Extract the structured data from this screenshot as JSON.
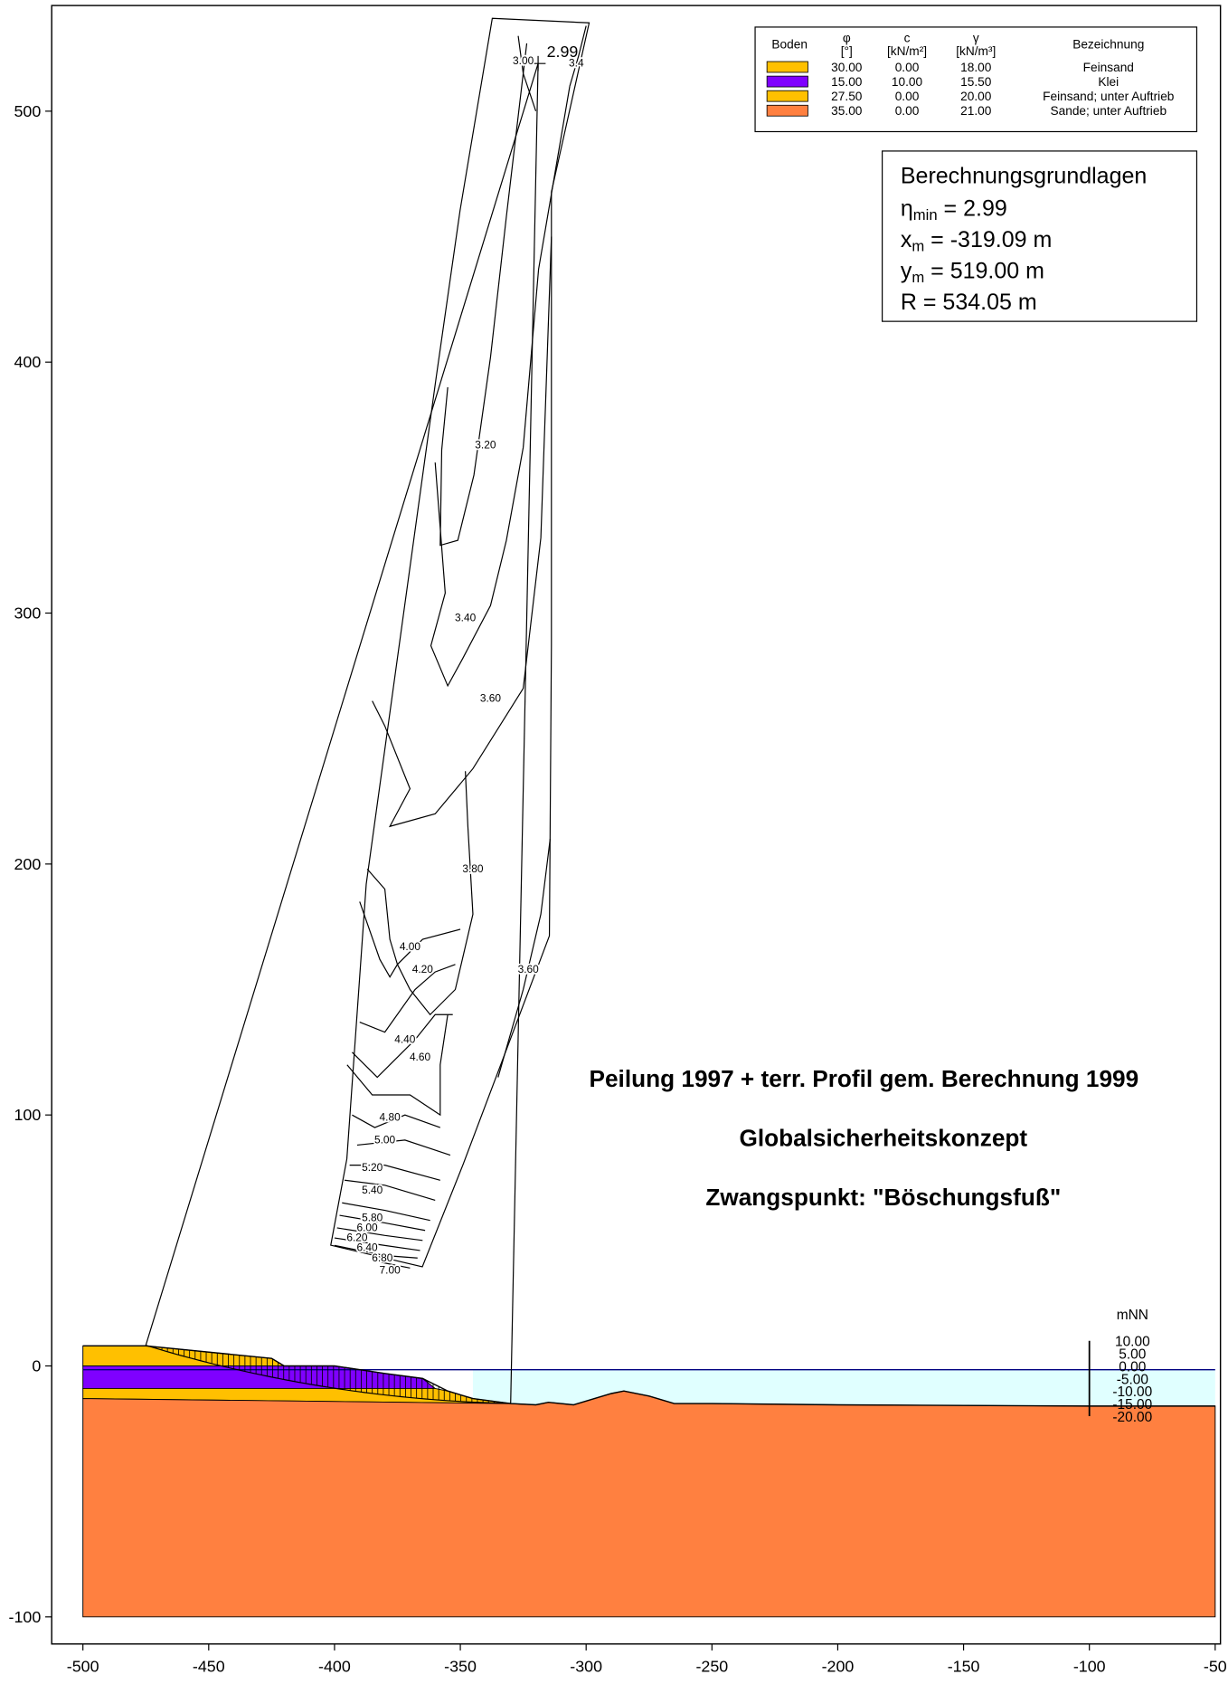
{
  "chart_data": {
    "type": "slope-stability",
    "xlim": [
      -512.4,
      -47.9
    ],
    "ylim": [
      -110.8,
      542.1
    ],
    "xticks": [
      -500,
      -450,
      -400,
      -350,
      -300,
      -250,
      -200,
      -150,
      -100,
      -50
    ],
    "yticks": [
      -100,
      0,
      100,
      200,
      300,
      400,
      500
    ],
    "annotations": [
      "Peilung 1997 + terr. Profil gem. Berechnung 1999",
      "Globalsicherheitskonzept",
      "Zwangspunkt: \"Böschungsfuß\""
    ],
    "legend": {
      "headers": [
        {
          "top": "Boden"
        },
        {
          "top": "φ",
          "bottom": "[°]"
        },
        {
          "top": "c",
          "bottom": "[kN/m²]"
        },
        {
          "top": "γ",
          "bottom": "[kN/m³]"
        },
        {
          "top": "Bezeichnung"
        }
      ],
      "rows": [
        {
          "color": "#ffc000",
          "phi": "30.00",
          "c": "0.00",
          "gamma": "18.00",
          "name": "Feinsand"
        },
        {
          "color": "#7f00ff",
          "phi": "15.00",
          "c": "10.00",
          "gamma": "15.50",
          "name": "Klei"
        },
        {
          "color": "#ffc000",
          "phi": "27.50",
          "c": "0.00",
          "gamma": "20.00",
          "name": "Feinsand; unter Auftrieb"
        },
        {
          "color": "#ff8040",
          "phi": "35.00",
          "c": "0.00",
          "gamma": "21.00",
          "name": "Sande; unter Auftrieb"
        }
      ]
    },
    "info": {
      "title": "Berechnungsgrundlagen",
      "lines": [
        {
          "symbol": "η",
          "sub": "min",
          "rest": " = 2.99"
        },
        {
          "symbol": "x",
          "sub": "m",
          "rest": " = -319.09 m"
        },
        {
          "symbol": "y",
          "sub": "m",
          "rest": " = 519.00 m"
        },
        {
          "symbol": "R",
          "sub": "",
          "rest": " = 534.05 m"
        }
      ]
    },
    "layers": [
      {
        "color": "#ffc000",
        "points": [
          [
            -500,
            8
          ],
          [
            -475,
            8
          ],
          [
            -425,
            3
          ],
          [
            -420,
            0
          ],
          [
            -500,
            0
          ]
        ]
      },
      {
        "color": "#7f00ff",
        "points": [
          [
            -500,
            0
          ],
          [
            -400,
            0
          ],
          [
            -380,
            -3
          ],
          [
            -365,
            -5
          ],
          [
            -360,
            -9
          ],
          [
            -500,
            -9
          ]
        ]
      },
      {
        "color": "#ffc000",
        "points": [
          [
            -500,
            -9
          ],
          [
            -360,
            -9
          ],
          [
            -355,
            -10
          ],
          [
            -345,
            -13
          ],
          [
            -330,
            -15
          ],
          [
            -500,
            -13
          ]
        ]
      },
      {
        "color": "#ff8040",
        "points": [
          [
            -500,
            -13
          ],
          [
            -330,
            -15
          ],
          [
            -320,
            -15.5
          ],
          [
            -315,
            -14.5
          ],
          [
            -305,
            -15.5
          ],
          [
            -300,
            -14
          ],
          [
            -290,
            -11
          ],
          [
            -285,
            -10
          ],
          [
            -275,
            -12
          ],
          [
            -265,
            -15
          ],
          [
            -250,
            -15
          ],
          [
            -200,
            -15.5
          ],
          [
            -100,
            -16
          ],
          [
            -50,
            -16
          ],
          [
            -50,
            -100
          ],
          [
            -500,
            -100
          ]
        ]
      }
    ],
    "ground_surface": [
      [
        -500,
        8
      ],
      [
        -475,
        8
      ],
      [
        -425,
        3
      ],
      [
        -420,
        0
      ],
      [
        -400,
        0
      ],
      [
        -380,
        -3
      ],
      [
        -365,
        -5
      ],
      [
        -355,
        -10
      ],
      [
        -345,
        -13
      ],
      [
        -330,
        -15
      ],
      [
        -320,
        -15.5
      ],
      [
        -315,
        -14.5
      ],
      [
        -305,
        -15.5
      ],
      [
        -300,
        -14
      ],
      [
        -290,
        -11
      ],
      [
        -285,
        -10
      ],
      [
        -275,
        -12
      ],
      [
        -265,
        -15
      ],
      [
        -250,
        -15
      ],
      [
        -200,
        -15.5
      ],
      [
        -100,
        -16
      ],
      [
        -50,
        -16
      ]
    ],
    "water": {
      "level": -1.5,
      "x_from": -500,
      "x_to": -50,
      "fill_from": -345,
      "color": "#e0ffff",
      "line_color": "#000080"
    },
    "slip_circle": {
      "center_x": -319.09,
      "center_y": 519,
      "radius": 534.05,
      "x_left": -475,
      "x_right": -330,
      "center_label": "2.99"
    },
    "search_grid": [
      [
        -337.3,
        537
      ],
      [
        -298.8,
        535.2
      ],
      [
        -313.8,
        467.8
      ],
      [
        -313.8,
        287.4
      ],
      [
        -314.6,
        171.4
      ],
      [
        -348.9,
        80.3
      ],
      [
        -365.1,
        39.5
      ],
      [
        -401.5,
        48.1
      ],
      [
        -395.1,
        82.5
      ],
      [
        -387.4,
        192
      ],
      [
        -359.6,
        393.9
      ],
      [
        -350.1,
        460.5
      ]
    ],
    "contours": [
      {
        "level": 3.0,
        "label": "3.00",
        "at": [
          -325,
          520
        ],
        "points": [
          [
            -327,
            530
          ],
          [
            -325,
            515
          ],
          [
            -320,
            500
          ]
        ]
      },
      {
        "level": 3.4,
        "label": "3.4",
        "at": [
          -303.9,
          519
        ],
        "points": [
          [
            -300,
            534
          ],
          [
            -303,
            522
          ],
          [
            -306.5,
            510
          ]
        ]
      },
      {
        "level": 3.2,
        "label": "3.20",
        "at": [
          -340,
          367
        ],
        "points": [
          [
            -323.6,
            527
          ],
          [
            -331.7,
            458
          ],
          [
            -338,
            402
          ],
          [
            -344.6,
            355
          ],
          [
            -351,
            329
          ],
          [
            -358,
            327
          ],
          [
            -357.4,
            365
          ],
          [
            -355,
            390
          ]
        ]
      },
      {
        "level": 3.4,
        "label": "3.40",
        "at": [
          -348,
          298
        ],
        "points": [
          [
            -306.5,
            510
          ],
          [
            -318.9,
            437
          ],
          [
            -325,
            366
          ],
          [
            -331.7,
            329
          ],
          [
            -338,
            303
          ],
          [
            -349,
            282
          ],
          [
            -355,
            271
          ],
          [
            -361.7,
            287
          ],
          [
            -356,
            308
          ],
          [
            -360,
            360
          ]
        ]
      },
      {
        "level": 3.6,
        "label": "3.60",
        "at": [
          -338,
          266
        ],
        "points": [
          [
            -313.8,
            450
          ],
          [
            -318,
            330
          ],
          [
            -325,
            270
          ],
          [
            -345,
            238
          ],
          [
            -360,
            220
          ],
          [
            -378,
            215
          ],
          [
            -370,
            230
          ],
          [
            -380,
            255
          ],
          [
            -385,
            265
          ]
        ]
      },
      {
        "level": 3.8,
        "label": "3.80",
        "at": [
          -345,
          198
        ],
        "points": [
          [
            -348,
            237
          ],
          [
            -347,
            215
          ],
          [
            -345,
            180
          ],
          [
            -352,
            150
          ],
          [
            -362,
            140
          ],
          [
            -370,
            150
          ],
          [
            -375,
            160
          ],
          [
            -378,
            170
          ],
          [
            -380,
            190
          ],
          [
            -387,
            198
          ]
        ]
      },
      {
        "level": 3.6,
        "label": "3.60",
        "at": [
          -323,
          158
        ],
        "points": [
          [
            -314.3,
            210
          ],
          [
            -318,
            180
          ],
          [
            -325,
            150
          ],
          [
            -335,
            115
          ]
        ]
      },
      {
        "level": 4.0,
        "label": "4.00",
        "at": [
          -370,
          167
        ],
        "points": [
          [
            -350,
            174
          ],
          [
            -365,
            170
          ],
          [
            -375,
            160
          ],
          [
            -378,
            155
          ],
          [
            -382,
            162
          ],
          [
            -390,
            185
          ]
        ]
      },
      {
        "level": 4.2,
        "label": "4.20",
        "at": [
          -365,
          158
        ],
        "points": [
          [
            -352,
            160
          ],
          [
            -360,
            157
          ],
          [
            -368,
            150
          ],
          [
            -380,
            133
          ],
          [
            -390,
            137
          ]
        ]
      },
      {
        "level": 4.4,
        "label": "4.40",
        "at": [
          -372,
          130
        ],
        "points": [
          [
            -353,
            140
          ],
          [
            -360,
            140
          ],
          [
            -368,
            130
          ],
          [
            -383,
            115
          ],
          [
            -393,
            125
          ]
        ]
      },
      {
        "level": 4.6,
        "label": "4.60",
        "at": [
          -366,
          123
        ],
        "points": [
          [
            -355,
            140
          ],
          [
            -358,
            120
          ],
          [
            -358,
            100
          ],
          [
            -370,
            108
          ],
          [
            -385,
            108
          ],
          [
            -395,
            120
          ]
        ]
      },
      {
        "level": 4.8,
        "label": "4.80",
        "at": [
          -378,
          99
        ],
        "points": [
          [
            -358,
            95
          ],
          [
            -372,
            100
          ],
          [
            -384,
            95
          ],
          [
            -393,
            100
          ]
        ]
      },
      {
        "level": 5.0,
        "label": "5.00",
        "at": [
          -380,
          90
        ],
        "points": [
          [
            -354,
            84
          ],
          [
            -372,
            90
          ],
          [
            -391,
            88
          ]
        ]
      },
      {
        "level": 5.2,
        "label": "5.20",
        "at": [
          -385,
          79
        ],
        "points": [
          [
            -358,
            74
          ],
          [
            -380,
            80
          ],
          [
            -394,
            80
          ]
        ]
      },
      {
        "level": 5.4,
        "label": "5.40",
        "at": [
          -385,
          70
        ],
        "points": [
          [
            -360,
            66
          ],
          [
            -380,
            72
          ],
          [
            -396,
            74
          ]
        ]
      },
      {
        "level": 5.8,
        "label": "5.80",
        "at": [
          -385,
          59
        ],
        "points": [
          [
            -362,
            58
          ],
          [
            -380,
            62
          ],
          [
            -397,
            65
          ]
        ]
      },
      {
        "level": 6.0,
        "label": "6.00",
        "at": [
          -387,
          55
        ],
        "points": [
          [
            -364,
            54
          ],
          [
            -380,
            57
          ],
          [
            -398,
            60
          ]
        ]
      },
      {
        "level": 6.2,
        "label": "6.20",
        "at": [
          -391,
          51
        ],
        "points": [
          [
            -365,
            50
          ],
          [
            -380,
            52
          ],
          [
            -399,
            55
          ]
        ]
      },
      {
        "level": 6.4,
        "label": "6.40",
        "at": [
          -387,
          47
        ],
        "points": [
          [
            -366,
            46
          ],
          [
            -380,
            48
          ],
          [
            -400,
            51
          ]
        ]
      },
      {
        "level": 6.8,
        "label": "6.80",
        "at": [
          -381,
          43
        ],
        "points": [
          [
            -367,
            43
          ],
          [
            -380,
            44
          ],
          [
            -400,
            48
          ]
        ]
      },
      {
        "level": 7.0,
        "label": "7.00",
        "at": [
          -378,
          38
        ],
        "points": [
          [
            -370,
            39
          ],
          [
            -385,
            42
          ]
        ]
      }
    ],
    "gauge": {
      "title": "mNN",
      "x": -100,
      "ticks": [
        {
          "value": 10,
          "label": "10.00"
        },
        {
          "value": 5,
          "label": "5.00"
        },
        {
          "value": 0,
          "label": "0.00"
        },
        {
          "value": -5,
          "label": "-5.00"
        },
        {
          "value": -10,
          "label": "-10.00"
        },
        {
          "value": -15,
          "label": "-15.00"
        },
        {
          "value": -20,
          "label": "-20.00"
        }
      ]
    }
  }
}
